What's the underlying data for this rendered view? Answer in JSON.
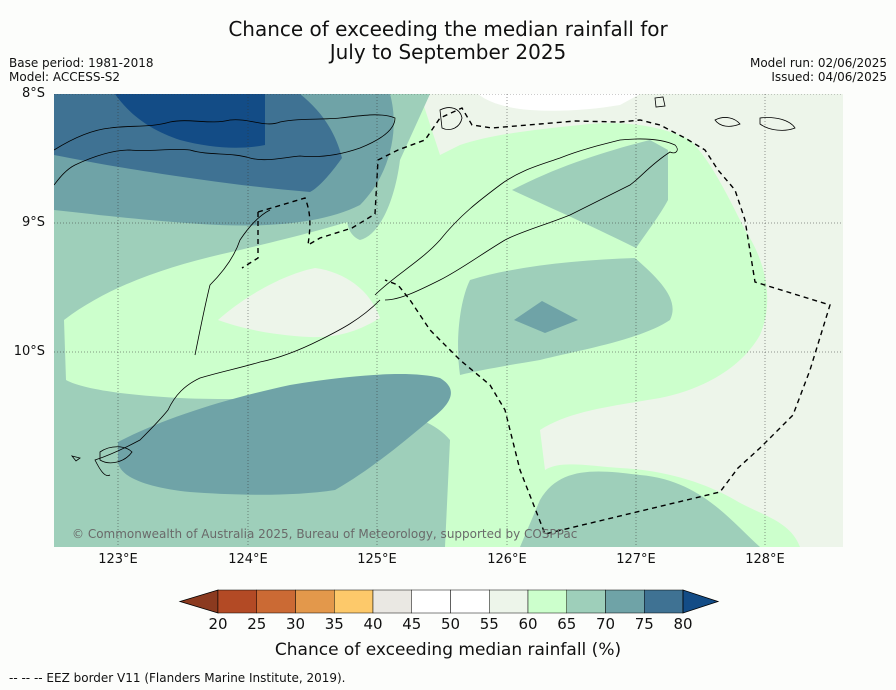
{
  "title_line1": "Chance of exceeding the median rainfall for",
  "title_line2": "July to September 2025",
  "base_period": "Base period: 1981-2018",
  "model": "Model: ACCESS-S2",
  "model_run": "Model run: 02/06/2025",
  "issued": "Issued: 04/06/2025",
  "copyright": "© Commonwealth of Australia 2025, Bureau of Meteorology, supported by COSPPac",
  "footer": "--  --  -- EEZ border V11 (Flanders Marine Institute, 2019).",
  "map": {
    "lat_labels": [
      "8°S",
      "9°S",
      "10°S"
    ],
    "lon_labels": [
      "123°E",
      "124°E",
      "125°E",
      "126°E",
      "127°E",
      "128°E"
    ],
    "lon_range": [
      122.5,
      128.6
    ],
    "lat_range": [
      -11.5,
      -8.0
    ]
  },
  "colorbar": {
    "title": "Chance of exceeding median rainfall (%)",
    "ticks": [
      "20",
      "25",
      "30",
      "35",
      "40",
      "45",
      "50",
      "55",
      "60",
      "65",
      "70",
      "75",
      "80"
    ],
    "colors": [
      "#8b3a1f",
      "#b34a25",
      "#cb6a34",
      "#e3984b",
      "#fdc96a",
      "#eae8e3",
      "#ffffff",
      "#ffffff",
      "#edf5ea",
      "#ccffcc",
      "#9ecfba",
      "#6fa3a7",
      "#3f7293",
      "#134c86"
    ]
  }
}
